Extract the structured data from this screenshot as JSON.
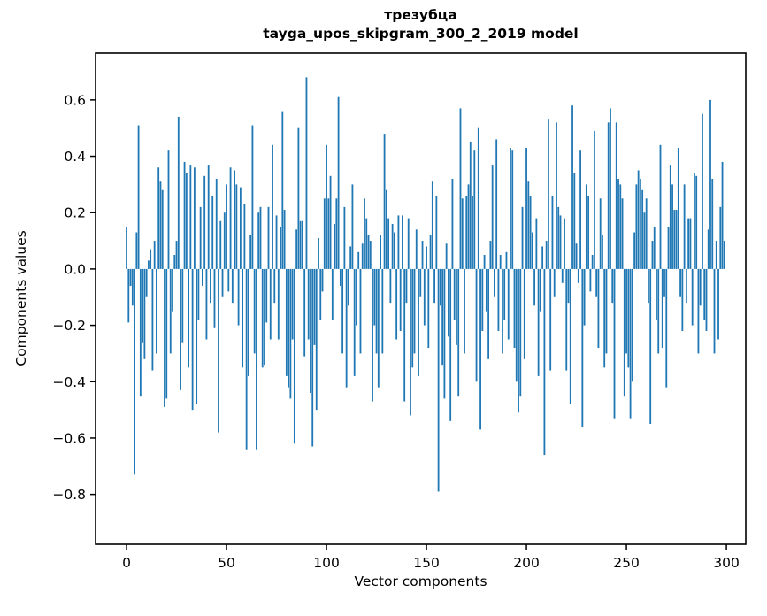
{
  "chart_data": {
    "type": "bar",
    "title": "трезубца",
    "subtitle": "tayga_upos_skipgram_300_2_2019 model",
    "xlabel": "Vector components",
    "ylabel": "Components values",
    "bar_color": "#1f77b4",
    "axis_color": "#000000",
    "background": "#ffffff",
    "grid": false,
    "legend": false,
    "x_start": 0,
    "bar_width": 0.8,
    "xlim": [
      -15.5,
      309.7
    ],
    "ylim": [
      -0.977,
      0.766
    ],
    "x_ticks": [
      0,
      50,
      100,
      150,
      200,
      250,
      300
    ],
    "x_tick_labels": [
      "0",
      "50",
      "100",
      "150",
      "200",
      "250",
      "300"
    ],
    "y_ticks": [
      0.6,
      0.4,
      0.2,
      0.0,
      -0.2,
      -0.4,
      -0.6,
      -0.8
    ],
    "y_tick_labels": [
      "0.6",
      "0.4",
      "0.2",
      "0.0",
      "−0.2",
      "−0.4",
      "−0.6",
      "−0.8"
    ],
    "values": [
      0.15,
      -0.19,
      -0.06,
      -0.13,
      -0.73,
      0.13,
      0.51,
      -0.45,
      -0.26,
      -0.32,
      -0.1,
      0.03,
      0.07,
      -0.36,
      0.1,
      -0.3,
      0.36,
      0.31,
      0.28,
      -0.49,
      -0.46,
      0.42,
      -0.3,
      -0.15,
      0.05,
      0.1,
      0.54,
      -0.43,
      -0.26,
      0.38,
      0.34,
      -0.35,
      0.37,
      -0.5,
      0.36,
      -0.48,
      -0.18,
      0.22,
      -0.06,
      0.33,
      -0.25,
      0.37,
      -0.12,
      0.26,
      -0.21,
      0.32,
      -0.58,
      0.17,
      -0.1,
      0.2,
      0.3,
      -0.08,
      0.36,
      -0.12,
      0.35,
      0.3,
      -0.2,
      0.29,
      -0.35,
      0.23,
      -0.64,
      -0.38,
      0.12,
      0.51,
      -0.3,
      -0.64,
      0.2,
      0.22,
      -0.35,
      -0.34,
      -0.19,
      0.22,
      -0.25,
      0.44,
      -0.12,
      0.19,
      -0.25,
      0.15,
      0.56,
      0.21,
      -0.38,
      -0.42,
      -0.46,
      -0.25,
      -0.62,
      0.14,
      0.5,
      0.17,
      0.17,
      -0.31,
      0.68,
      -0.25,
      -0.44,
      -0.63,
      -0.27,
      -0.5,
      0.11,
      -0.18,
      -0.08,
      0.25,
      0.44,
      0.25,
      0.33,
      -0.18,
      0.16,
      0.25,
      0.61,
      -0.06,
      -0.3,
      0.22,
      -0.42,
      -0.13,
      0.08,
      0.3,
      -0.38,
      -0.2,
      0.06,
      -0.3,
      0.09,
      0.25,
      0.18,
      0.12,
      0.1,
      -0.47,
      -0.2,
      -0.3,
      -0.42,
      0.12,
      -0.3,
      0.48,
      0.28,
      0.18,
      -0.12,
      0.16,
      0.13,
      -0.25,
      0.19,
      -0.22,
      0.19,
      -0.47,
      -0.12,
      0.18,
      -0.52,
      -0.35,
      -0.3,
      0.14,
      -0.38,
      -0.1,
      0.1,
      -0.2,
      0.08,
      -0.28,
      0.12,
      0.31,
      -0.12,
      0.26,
      -0.79,
      -0.13,
      -0.34,
      -0.46,
      0.09,
      -0.24,
      -0.54,
      0.32,
      -0.18,
      -0.27,
      -0.45,
      0.57,
      0.25,
      -0.3,
      0.26,
      0.3,
      0.45,
      0.26,
      0.42,
      -0.4,
      0.5,
      -0.57,
      -0.22,
      0.05,
      -0.15,
      -0.32,
      0.1,
      0.37,
      -0.1,
      0.46,
      -0.22,
      0.05,
      -0.3,
      -0.18,
      0.06,
      -0.25,
      0.43,
      0.42,
      -0.28,
      -0.4,
      -0.51,
      -0.45,
      0.22,
      -0.32,
      0.43,
      0.31,
      0.26,
      0.13,
      -0.13,
      0.18,
      -0.38,
      -0.15,
      0.08,
      -0.66,
      0.1,
      0.53,
      -0.36,
      0.26,
      -0.1,
      0.52,
      0.22,
      0.19,
      -0.05,
      0.18,
      -0.36,
      -0.12,
      -0.48,
      0.58,
      0.34,
      0.09,
      -0.05,
      0.42,
      -0.56,
      -0.2,
      0.3,
      0.26,
      -0.08,
      0.05,
      0.49,
      -0.1,
      -0.28,
      0.25,
      0.12,
      -0.35,
      -0.3,
      0.52,
      0.57,
      -0.12,
      -0.53,
      0.52,
      0.32,
      0.3,
      0.25,
      -0.45,
      -0.3,
      -0.35,
      -0.53,
      -0.4,
      0.13,
      0.3,
      0.35,
      0.32,
      0.28,
      0.2,
      0.25,
      -0.12,
      -0.55,
      0.1,
      0.15,
      -0.18,
      -0.3,
      0.44,
      -0.28,
      -0.1,
      -0.42,
      0.15,
      0.37,
      0.3,
      0.21,
      0.21,
      0.43,
      -0.1,
      -0.22,
      0.3,
      -0.12,
      0.18,
      0.18,
      -0.2,
      0.34,
      0.33,
      -0.3,
      -0.13,
      0.55,
      -0.18,
      -0.22,
      0.14,
      0.6,
      0.32,
      -0.3,
      0.1,
      -0.25,
      0.22,
      0.38,
      0.1
    ]
  }
}
